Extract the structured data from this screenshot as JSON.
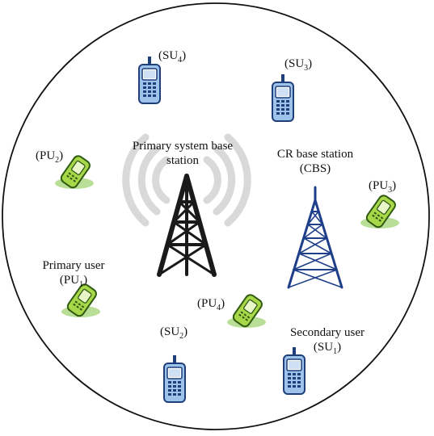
{
  "labels": {
    "su4": {
      "prefix": "(SU",
      "sub": "4",
      "suffix": ")"
    },
    "su3": {
      "prefix": "(SU",
      "sub": "3",
      "suffix": ")"
    },
    "su2": {
      "prefix": "(SU",
      "sub": "2",
      "suffix": ")"
    },
    "su1": {
      "prefix": "(SU",
      "sub": "1",
      "suffix": ")"
    },
    "pu2": {
      "prefix": "(PU",
      "sub": "2",
      "suffix": ")"
    },
    "pu3": {
      "prefix": "(PU",
      "sub": "3",
      "suffix": ")"
    },
    "pu4": {
      "prefix": "(PU",
      "sub": "4",
      "suffix": ")"
    },
    "pu1": {
      "prefix": "(PU",
      "sub": "1",
      "suffix": ")"
    },
    "primary_bs_line1": "Primary system base",
    "primary_bs_line2": "station",
    "cr_bs_line1": "CR base station",
    "cr_bs_line2": "(CBS)",
    "primary_user": "Primary user",
    "secondary_user": "Secondary user"
  },
  "colors": {
    "su_phone_body": "#9ec3ea",
    "su_phone_outline": "#1f3f7a",
    "pu_phone_body": "#a8d84a",
    "pu_phone_outline": "#2f5a12",
    "signal_arcs": "#d9d9d9",
    "tower_primary": "#1a1a1a",
    "tower_cr": "#1f3f8a"
  },
  "icons": {
    "su": "mobile-phone-icon",
    "pu": "flip-phone-icon",
    "primary_tower": "radio-tower-icon",
    "cr_tower": "lattice-tower-icon"
  }
}
